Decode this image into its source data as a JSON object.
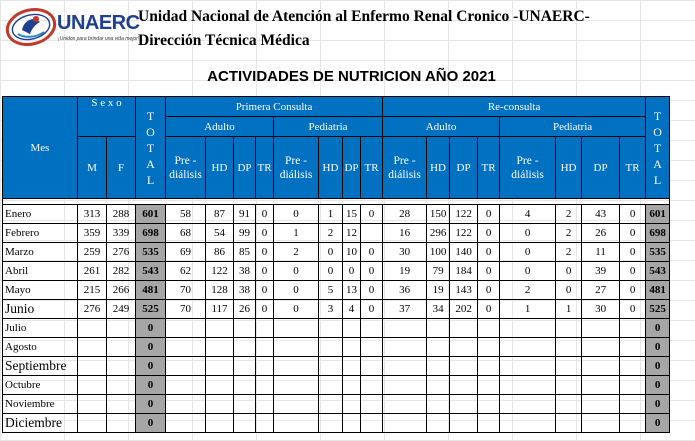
{
  "header": {
    "logo_text": "UNAERC",
    "logo_tagline": "¡Unidos para brindar una vida mejor!",
    "org_line1": "Unidad Nacional de Atención al Enfermo Renal Cronico -UNAERC-",
    "org_line2": "Dirección Técnica Médica",
    "title": "ACTIVIDADES DE NUTRICION  AÑO 2021"
  },
  "colors": {
    "header_bg": "#0070c0",
    "total_bg": "#a6a6a6"
  },
  "columns": {
    "mes": "Mes",
    "sexo": "S e x o",
    "m": "M",
    "f": "F",
    "total_letters": [
      "T",
      "O",
      "T",
      "A",
      "L"
    ],
    "primera": "Primera Consulta",
    "reconsulta": "Re-consulta",
    "adulto": "Adulto",
    "pediatria": "Pediatria",
    "pre_dialisis_1": "Pre -",
    "pre_dialisis_2": "diálisis",
    "hd": "HD",
    "dp": "DP",
    "tr": "TR"
  },
  "rows": [
    {
      "mes": "Enero",
      "big": false,
      "m": "313",
      "f": "288",
      "total": "601",
      "pa": [
        "58",
        "87",
        "91",
        "0"
      ],
      "pp": [
        "0",
        "1",
        "15",
        "0"
      ],
      "ra": [
        "28",
        "150",
        "122",
        "0"
      ],
      "rp": [
        "4",
        "2",
        "43",
        "0"
      ],
      "total2": "601"
    },
    {
      "mes": "Febrero",
      "big": false,
      "m": "359",
      "f": "339",
      "total": "698",
      "pa": [
        "68",
        "54",
        "99",
        "0"
      ],
      "pp": [
        "1",
        "2",
        "12",
        ""
      ],
      "ra": [
        "16",
        "296",
        "122",
        "0"
      ],
      "rp": [
        "0",
        "2",
        "26",
        "0"
      ],
      "total2": "698"
    },
    {
      "mes": "Marzo",
      "big": false,
      "m": "259",
      "f": "276",
      "total": "535",
      "pa": [
        "69",
        "86",
        "85",
        "0"
      ],
      "pp": [
        "2",
        "0",
        "10",
        "0"
      ],
      "ra": [
        "30",
        "100",
        "140",
        "0"
      ],
      "rp": [
        "0",
        "2",
        "11",
        "0"
      ],
      "total2": "535"
    },
    {
      "mes": "Abril",
      "big": false,
      "m": "261",
      "f": "282",
      "total": "543",
      "pa": [
        "62",
        "122",
        "38",
        "0"
      ],
      "pp": [
        "0",
        "0",
        "0",
        "0"
      ],
      "ra": [
        "19",
        "79",
        "184",
        "0"
      ],
      "rp": [
        "0",
        "0",
        "39",
        "0"
      ],
      "total2": "543"
    },
    {
      "mes": "Mayo",
      "big": false,
      "m": "215",
      "f": "266",
      "total": "481",
      "pa": [
        "70",
        "128",
        "38",
        "0"
      ],
      "pp": [
        "0",
        "5",
        "13",
        "0"
      ],
      "ra": [
        "36",
        "19",
        "143",
        "0"
      ],
      "rp": [
        "2",
        "0",
        "27",
        "0"
      ],
      "total2": "481"
    },
    {
      "mes": "Junio",
      "big": true,
      "m": "276",
      "f": "249",
      "total": "525",
      "pa": [
        "70",
        "117",
        "26",
        "0"
      ],
      "pp": [
        "0",
        "3",
        "4",
        "0"
      ],
      "ra": [
        "37",
        "34",
        "202",
        "0"
      ],
      "rp": [
        "1",
        "1",
        "30",
        "0"
      ],
      "total2": "525"
    },
    {
      "mes": "Julio",
      "big": false,
      "m": "",
      "f": "",
      "total": "0",
      "pa": [
        "",
        "",
        "",
        ""
      ],
      "pp": [
        "",
        "",
        "",
        ""
      ],
      "ra": [
        "",
        "",
        "",
        ""
      ],
      "rp": [
        "",
        "",
        "",
        ""
      ],
      "total2": "0"
    },
    {
      "mes": "Agosto",
      "big": false,
      "m": "",
      "f": "",
      "total": "0",
      "pa": [
        "",
        "",
        "",
        ""
      ],
      "pp": [
        "",
        "",
        "",
        ""
      ],
      "ra": [
        "",
        "",
        "",
        ""
      ],
      "rp": [
        "",
        "",
        "",
        ""
      ],
      "total2": "0"
    },
    {
      "mes": "Septiembre",
      "big": true,
      "m": "",
      "f": "",
      "total": "0",
      "pa": [
        "",
        "",
        "",
        ""
      ],
      "pp": [
        "",
        "",
        "",
        ""
      ],
      "ra": [
        "",
        "",
        "",
        ""
      ],
      "rp": [
        "",
        "",
        "",
        ""
      ],
      "total2": "0"
    },
    {
      "mes": "Octubre",
      "big": false,
      "m": "",
      "f": "",
      "total": "0",
      "pa": [
        "",
        "",
        "",
        ""
      ],
      "pp": [
        "",
        "",
        "",
        ""
      ],
      "ra": [
        "",
        "",
        "",
        ""
      ],
      "rp": [
        "",
        "",
        "",
        ""
      ],
      "total2": "0"
    },
    {
      "mes": "Noviembre",
      "big": false,
      "m": "",
      "f": "",
      "total": "0",
      "pa": [
        "",
        "",
        "",
        ""
      ],
      "pp": [
        "",
        "",
        "",
        ""
      ],
      "ra": [
        "",
        "",
        "",
        ""
      ],
      "rp": [
        "",
        "",
        "",
        ""
      ],
      "total2": "0"
    },
    {
      "mes": "Diciembre",
      "big": true,
      "m": "",
      "f": "",
      "total": "0",
      "pa": [
        "",
        "",
        "",
        ""
      ],
      "pp": [
        "",
        "",
        "",
        ""
      ],
      "ra": [
        "",
        "",
        "",
        ""
      ],
      "rp": [
        "",
        "",
        "",
        ""
      ],
      "total2": "0"
    }
  ]
}
